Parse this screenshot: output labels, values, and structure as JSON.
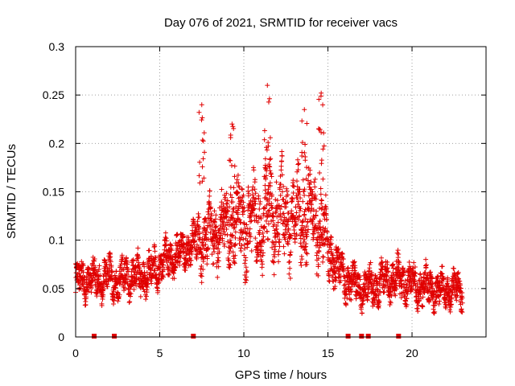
{
  "chart_data": {
    "type": "scatter",
    "title": "Day 076 of 2021, SRMTID for receiver vacs",
    "xlabel": "GPS time / hours",
    "ylabel": "SRMTID / TECUs",
    "xlim": [
      0,
      24.4
    ],
    "ylim": [
      0,
      0.3
    ],
    "x_ticks": [
      0,
      5,
      10,
      15,
      20
    ],
    "x_tick_labels": [
      "0",
      "5",
      "10",
      "15",
      "20"
    ],
    "y_ticks": [
      0,
      0.05,
      0.1,
      0.15,
      0.2,
      0.25,
      0.3
    ],
    "y_tick_labels": [
      "0",
      "0.05",
      "0.1",
      "0.15",
      "0.2",
      "0.25",
      "0.3"
    ],
    "grid": true,
    "marker": "+",
    "color": "#e00000",
    "time_range_hours": [
      0,
      23
    ],
    "sample_step_hours": 0.0083,
    "envelope": [
      {
        "t": 0.0,
        "mean": 0.06,
        "spread": 0.02
      },
      {
        "t": 1.0,
        "mean": 0.058,
        "spread": 0.018
      },
      {
        "t": 2.0,
        "mean": 0.062,
        "spread": 0.02
      },
      {
        "t": 2.5,
        "mean": 0.055,
        "spread": 0.018
      },
      {
        "t": 3.0,
        "mean": 0.065,
        "spread": 0.02
      },
      {
        "t": 4.0,
        "mean": 0.062,
        "spread": 0.02
      },
      {
        "t": 5.0,
        "mean": 0.075,
        "spread": 0.02
      },
      {
        "t": 6.0,
        "mean": 0.085,
        "spread": 0.02
      },
      {
        "t": 7.0,
        "mean": 0.095,
        "spread": 0.022
      },
      {
        "t": 7.5,
        "mean": 0.1,
        "spread": 0.03
      },
      {
        "t": 8.5,
        "mean": 0.11,
        "spread": 0.035
      },
      {
        "t": 9.5,
        "mean": 0.12,
        "spread": 0.04
      },
      {
        "t": 10.5,
        "mean": 0.115,
        "spread": 0.045
      },
      {
        "t": 11.5,
        "mean": 0.13,
        "spread": 0.05
      },
      {
        "t": 12.5,
        "mean": 0.12,
        "spread": 0.045
      },
      {
        "t": 13.5,
        "mean": 0.125,
        "spread": 0.045
      },
      {
        "t": 14.5,
        "mean": 0.12,
        "spread": 0.045
      },
      {
        "t": 15.0,
        "mean": 0.09,
        "spread": 0.03
      },
      {
        "t": 16.0,
        "mean": 0.06,
        "spread": 0.02
      },
      {
        "t": 17.0,
        "mean": 0.05,
        "spread": 0.018
      },
      {
        "t": 18.0,
        "mean": 0.055,
        "spread": 0.02
      },
      {
        "t": 19.0,
        "mean": 0.06,
        "spread": 0.022
      },
      {
        "t": 20.0,
        "mean": 0.055,
        "spread": 0.02
      },
      {
        "t": 21.0,
        "mean": 0.05,
        "spread": 0.02
      },
      {
        "t": 22.0,
        "mean": 0.048,
        "spread": 0.018
      },
      {
        "t": 23.0,
        "mean": 0.05,
        "spread": 0.018
      }
    ],
    "peaks": [
      {
        "t": 7.5,
        "value": 0.24
      },
      {
        "t": 9.3,
        "value": 0.22
      },
      {
        "t": 11.4,
        "value": 0.26
      },
      {
        "t": 13.6,
        "value": 0.235
      },
      {
        "t": 14.6,
        "value": 0.252
      }
    ],
    "gap_markers": [
      1.1,
      2.3,
      7.0,
      16.2,
      17.0,
      17.4,
      19.2
    ]
  }
}
